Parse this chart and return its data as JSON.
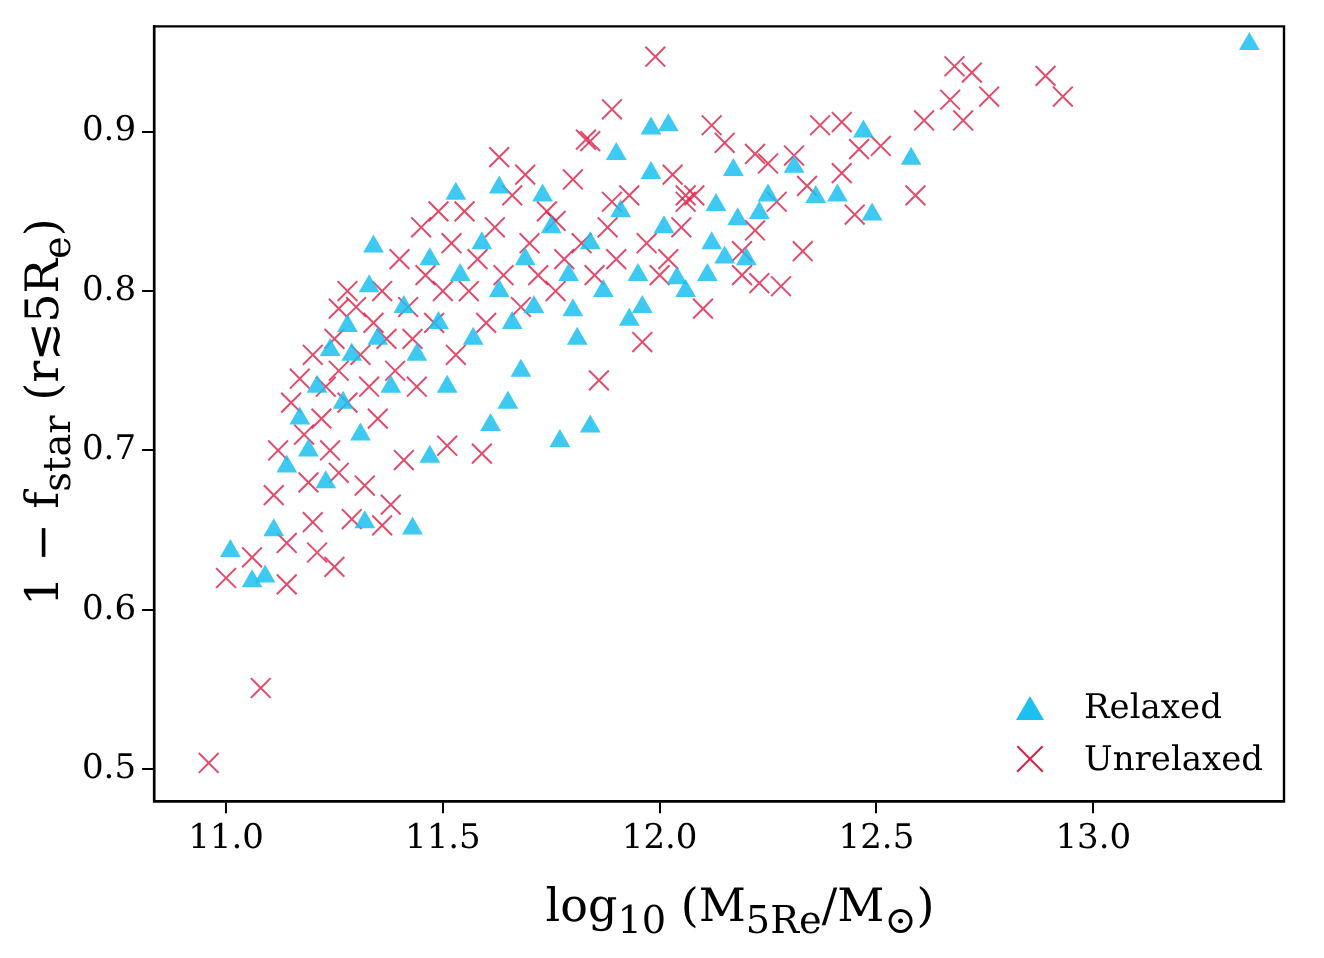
{
  "chart_data": {
    "type": "scatter",
    "xlabel": "log$_{10}$ (M$_{5Re}$/M$_{⊙}$)",
    "ylabel": "1 − f$_{star}$ (r≲5R$_{e}$)",
    "xlim": [
      10.834,
      13.44
    ],
    "ylim": [
      0.48,
      0.966
    ],
    "xticks": [
      {
        "value": 11,
        "label": "11.0"
      },
      {
        "value": 11.5,
        "label": "11.5"
      },
      {
        "value": 12,
        "label": "12.0"
      },
      {
        "value": 12.5,
        "label": "12.5"
      },
      {
        "value": 13,
        "label": "13.0"
      }
    ],
    "yticks": [
      {
        "value": 0.5,
        "label": "0.5"
      },
      {
        "value": 0.6,
        "label": "0.6"
      },
      {
        "value": 0.7,
        "label": "0.7"
      },
      {
        "value": 0.8,
        "label": "0.8"
      },
      {
        "value": 0.9,
        "label": "0.9"
      }
    ],
    "grid": false,
    "legend": "bottom right",
    "series": [
      {
        "name": "Relaxed",
        "color": "#1cbff0",
        "marker": "triangle",
        "x": [
          13.36,
          12.58,
          12.49,
          12.41,
          12.47,
          11.01,
          11.06,
          11.09,
          11.11,
          11.43,
          11.32,
          11.77,
          11.84,
          11.61,
          11.47,
          11.65,
          11.68,
          11.34,
          11.53,
          11.63,
          11.73,
          11.9,
          11.98,
          12.02,
          11.98,
          11.8,
          11.93,
          11.28,
          11.24,
          11.33,
          12.17,
          12.13,
          12.18,
          12.23,
          12.31,
          12.36,
          12.04,
          12.11,
          11.96,
          12.15,
          11.14,
          11.17,
          11.19,
          11.21,
          11.23,
          11.27,
          11.29,
          11.31,
          11.35,
          11.38,
          11.41,
          11.44,
          11.47,
          11.49,
          11.51,
          11.54,
          11.57,
          11.59,
          11.63,
          11.66,
          11.69,
          11.71,
          11.75,
          11.79,
          11.81,
          11.84,
          11.87,
          11.91,
          11.95,
          12.01,
          12.06,
          12.12,
          12.2,
          12.25
        ],
        "values": [
          0.955,
          0.883,
          0.848,
          0.86,
          0.9,
          0.637,
          0.618,
          0.621,
          0.65,
          0.651,
          0.655,
          0.706,
          0.715,
          0.716,
          0.696,
          0.73,
          0.75,
          0.828,
          0.861,
          0.865,
          0.86,
          0.886,
          0.902,
          0.904,
          0.874,
          0.788,
          0.782,
          0.778,
          0.763,
          0.803,
          0.876,
          0.854,
          0.845,
          0.849,
          0.878,
          0.859,
          0.808,
          0.81,
          0.79,
          0.821,
          0.69,
          0.72,
          0.7,
          0.74,
          0.68,
          0.73,
          0.76,
          0.71,
          0.77,
          0.74,
          0.79,
          0.76,
          0.82,
          0.78,
          0.74,
          0.81,
          0.77,
          0.83,
          0.8,
          0.78,
          0.82,
          0.79,
          0.84,
          0.81,
          0.77,
          0.83,
          0.8,
          0.85,
          0.81,
          0.84,
          0.8,
          0.83,
          0.82,
          0.86
        ]
      },
      {
        "name": "Unrelaxed",
        "color": "#dc1e46",
        "marker": "cross",
        "x": [
          10.96,
          11.08,
          11.0,
          11.99,
          12.68,
          12.72,
          12.76,
          12.89,
          12.93,
          12.67,
          12.7,
          12.61,
          12.59,
          11.89,
          12.12,
          12.15,
          12.22,
          12.37,
          12.42,
          12.51,
          12.46,
          12.42,
          12.31,
          12.25,
          12.34,
          12.27,
          12.45,
          12.33,
          12.22,
          12.19,
          12.28,
          12.23,
          12.19,
          12.1,
          11.96,
          11.86,
          12.06,
          12.03,
          11.84,
          11.83,
          11.63,
          11.69,
          11.49,
          11.26,
          11.76,
          11.89,
          12.06,
          12.0,
          11.59,
          11.38,
          11.36,
          11.25,
          11.21,
          11.14,
          11.06,
          11.11,
          11.2,
          11.29,
          11.14,
          11.41,
          11.32,
          11.26,
          11.51,
          11.12,
          11.15,
          11.17,
          11.18,
          11.2,
          11.22,
          11.23,
          11.25,
          11.26,
          11.28,
          11.3,
          11.31,
          11.33,
          11.34,
          11.36,
          11.37,
          11.39,
          11.4,
          11.42,
          11.43,
          11.45,
          11.46,
          11.48,
          11.5,
          11.52,
          11.53,
          11.55,
          11.56,
          11.58,
          11.6,
          11.62,
          11.64,
          11.66,
          11.68,
          11.7,
          11.72,
          11.74,
          11.76,
          11.78,
          11.8,
          11.82,
          11.85,
          11.88,
          11.9,
          11.93,
          11.97,
          12.02,
          12.05,
          12.08,
          11.35,
          11.44,
          11.28,
          11.19,
          11.24
        ],
        "values": [
          0.504,
          0.551,
          0.62,
          0.947,
          0.941,
          0.937,
          0.922,
          0.935,
          0.922,
          0.92,
          0.907,
          0.907,
          0.86,
          0.914,
          0.904,
          0.893,
          0.886,
          0.904,
          0.906,
          0.891,
          0.889,
          0.874,
          0.885,
          0.88,
          0.866,
          0.856,
          0.848,
          0.825,
          0.838,
          0.825,
          0.803,
          0.805,
          0.81,
          0.789,
          0.768,
          0.744,
          0.856,
          0.873,
          0.894,
          0.895,
          0.884,
          0.873,
          0.85,
          0.789,
          0.844,
          0.856,
          0.86,
          0.81,
          0.698,
          0.666,
          0.653,
          0.627,
          0.636,
          0.616,
          0.633,
          0.672,
          0.655,
          0.657,
          0.642,
          0.694,
          0.678,
          0.686,
          0.703,
          0.7,
          0.73,
          0.745,
          0.71,
          0.76,
          0.72,
          0.74,
          0.77,
          0.75,
          0.73,
          0.79,
          0.76,
          0.74,
          0.78,
          0.8,
          0.77,
          0.75,
          0.82,
          0.79,
          0.77,
          0.84,
          0.81,
          0.78,
          0.8,
          0.83,
          0.76,
          0.85,
          0.8,
          0.82,
          0.78,
          0.84,
          0.81,
          0.86,
          0.79,
          0.83,
          0.81,
          0.85,
          0.8,
          0.82,
          0.87,
          0.83,
          0.81,
          0.84,
          0.82,
          0.86,
          0.83,
          0.82,
          0.84,
          0.86,
          0.72,
          0.74,
          0.8,
          0.68,
          0.7
        ]
      }
    ]
  }
}
